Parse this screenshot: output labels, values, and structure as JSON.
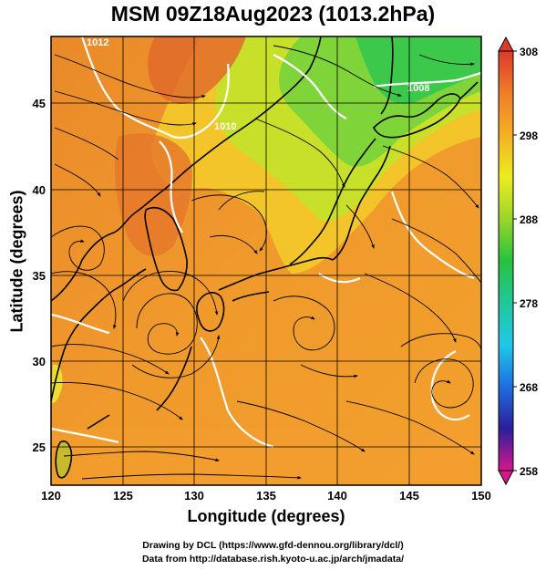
{
  "title": "MSM 09Z18Aug2023 (1013.2hPa)",
  "axes": {
    "x_label": "Longitude (degrees)",
    "y_label": "Latitude  (degrees)",
    "x_ticks": [
      120,
      125,
      130,
      135,
      140,
      145,
      150
    ],
    "y_ticks": [
      25,
      30,
      35,
      40,
      45
    ],
    "x_range": [
      120,
      150
    ],
    "y_range": [
      22.4,
      47.6
    ]
  },
  "colorbar": {
    "ticks": [
      308,
      298,
      288,
      278,
      268,
      258
    ],
    "range": [
      258,
      308
    ],
    "colors": [
      "#d6188c",
      "#2c1e9a",
      "#1f6ee0",
      "#1fc8e8",
      "#22c79a",
      "#27c23e",
      "#9ad62a",
      "#ecec20",
      "#f5b023",
      "#f07d2a",
      "#dd3a2a"
    ]
  },
  "contour_labels": [
    "1010",
    "1008",
    "1012"
  ],
  "credits": {
    "line1": "Drawing by DCL (https://www.gfd-dennou.org/library/dcl/)",
    "line2": "Data from http://database.rish.kyoto-u.ac.jp/arch/jmadata/"
  }
}
